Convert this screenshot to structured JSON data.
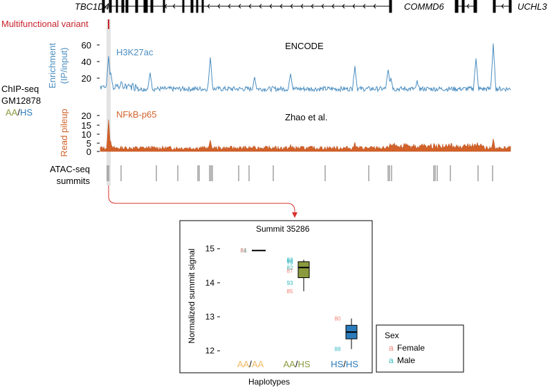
{
  "genes": {
    "left": "TBC1D4",
    "middle": "COMMD6",
    "right": "UCHL3"
  },
  "variant_label": "Multifunctional variant",
  "chip_label": {
    "line1": "ChIP-seq",
    "line2": "GM12878",
    "aa": "AA",
    "slash": "/",
    "hs": "HS"
  },
  "track_h3k27ac": {
    "ylabel_line1": "Enrichment",
    "ylabel_line2": "(IP/input)",
    "name": "H3K27ac",
    "source": "ENCODE",
    "ticks": [
      "20",
      "40",
      "60"
    ]
  },
  "track_nfkb": {
    "ylabel": "Read pileup",
    "name": "NFkB-p65",
    "source": "Zhao et al.",
    "ticks": [
      "0",
      "5",
      "10",
      "15",
      "20"
    ]
  },
  "atac": {
    "line1": "ATAC-seq",
    "line2": "summits"
  },
  "colors": {
    "variant": "#c8232c",
    "h3k27ac": "#4a8dc0",
    "nfkb": "#d2622a",
    "aa": "#8a9a3e",
    "hs": "#2b7bba",
    "aaaa": "#f0b860",
    "female": "#f08070",
    "male": "#30b8c0",
    "aahs_box": "#8a9a3e",
    "hshs_box": "#2b7bba"
  },
  "chart_data": {
    "type": "box",
    "title": "Summit 35286",
    "ylabel": "Normalized summit signal",
    "xlabel": "Haplotypes",
    "ylim": [
      11.8,
      15.3
    ],
    "yticks": [
      "12",
      "13",
      "14",
      "15"
    ],
    "groups": [
      {
        "a": "AA",
        "sep": "/",
        "b": "AA",
        "color_a": "#f0b860",
        "color_b": "#f0b860",
        "fill": "none",
        "min": 14.95,
        "q1": 14.95,
        "median": 14.95,
        "q3": 14.95,
        "max": 14.95,
        "points": [
          {
            "label": "84",
            "value": 14.95,
            "sex": "male"
          },
          {
            "label": "81",
            "value": 14.95,
            "sex": "female"
          }
        ]
      },
      {
        "a": "AA",
        "sep": "/",
        "b": "HS",
        "color_a": "#8a9a3e",
        "color_b": "#8a9a3e",
        "fill": "#8a9a3e",
        "min": 13.75,
        "q1": 14.15,
        "median": 14.45,
        "q3": 14.62,
        "max": 14.68,
        "points": [
          {
            "label": "83",
            "value": 14.68,
            "sex": "male"
          },
          {
            "label": "86",
            "value": 14.64,
            "sex": "male"
          },
          {
            "label": "79",
            "value": 14.6,
            "sex": "male"
          },
          {
            "label": "82",
            "value": 14.45,
            "sex": "male"
          },
          {
            "label": "87",
            "value": 14.35,
            "sex": "female"
          },
          {
            "label": "93",
            "value": 14.0,
            "sex": "male"
          },
          {
            "label": "85",
            "value": 13.75,
            "sex": "female"
          }
        ]
      },
      {
        "a": "HS",
        "sep": "/",
        "b": "HS",
        "color_a": "#2b7bba",
        "color_b": "#2b7bba",
        "fill": "#2b7bba",
        "min": 12.05,
        "q1": 12.35,
        "median": 12.55,
        "q3": 12.75,
        "max": 12.95,
        "points": [
          {
            "label": "80",
            "value": 12.95,
            "sex": "female"
          },
          {
            "label": "88",
            "value": 12.05,
            "sex": "male"
          }
        ]
      }
    ],
    "legend": {
      "title": "Sex",
      "female_mark": "a",
      "female": "Female",
      "male_mark": "a",
      "male": "Male",
      "placement": "right"
    }
  }
}
